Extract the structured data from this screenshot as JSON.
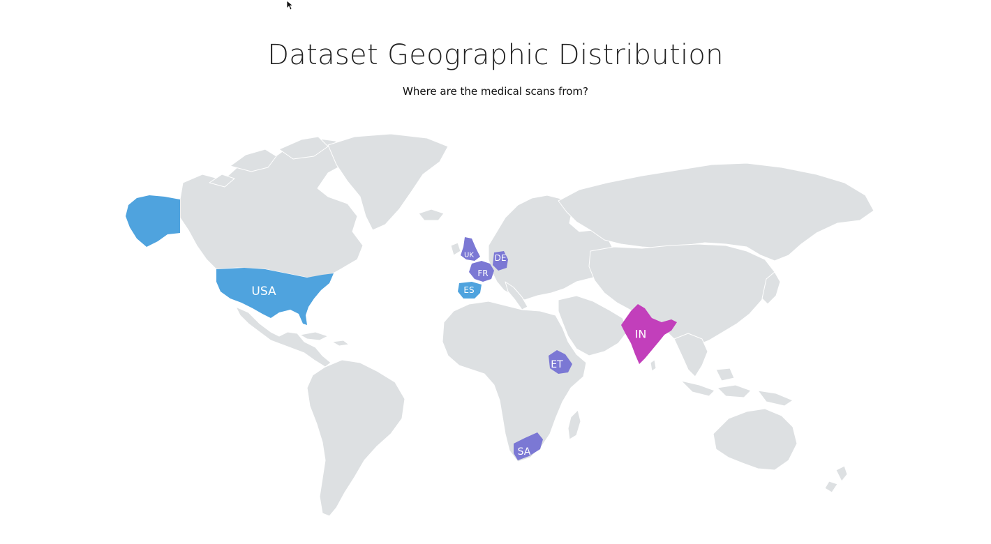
{
  "slide": {
    "title": "Dataset Geographic Distribution",
    "subtitle": "Where are the medical scans from?"
  },
  "map": {
    "colors": {
      "land": "#dde0e2",
      "border": "#ffffff",
      "blue": "#4fa3de",
      "purple": "#7b78d4",
      "magenta": "#c23fbb"
    },
    "highlighted_countries": [
      {
        "name": "United States",
        "label": "USA",
        "color": "#4fa3de"
      },
      {
        "name": "Alaska",
        "label": "",
        "color": "#4fa3de"
      },
      {
        "name": "United Kingdom",
        "label": "UK",
        "color": "#7b78d4"
      },
      {
        "name": "France",
        "label": "FR",
        "color": "#7b78d4"
      },
      {
        "name": "Germany",
        "label": "DE",
        "color": "#7b78d4"
      },
      {
        "name": "Spain",
        "label": "ES",
        "color": "#4fa3de"
      },
      {
        "name": "Ethiopia",
        "label": "ET",
        "color": "#7b78d4"
      },
      {
        "name": "South Africa",
        "label": "SA",
        "color": "#7b78d4"
      },
      {
        "name": "India",
        "label": "IN",
        "color": "#c23fbb"
      }
    ]
  }
}
